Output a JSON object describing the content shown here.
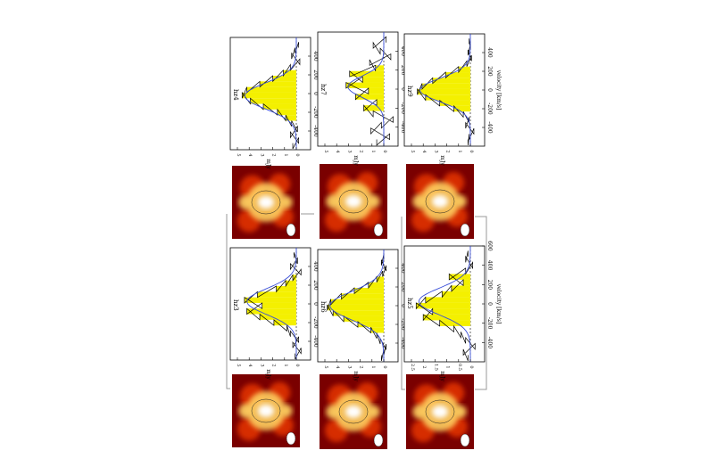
{
  "figure": {
    "orientation": "rotated-90-clockwise",
    "panels": [
      {
        "label": "hz4",
        "x_axis_label": "velocity [km/s]",
        "y_axis_label": "mJy"
      },
      {
        "label": "hz7",
        "x_axis_label": "velocity [km/s]",
        "y_axis_label": "mJy"
      },
      {
        "label": "hz9",
        "x_axis_label": "velocity [km/s]",
        "y_axis_label": "mJy"
      },
      {
        "label": "hz3",
        "x_axis_label": "velocity [km/s]",
        "y_axis_label": "mJy"
      },
      {
        "label": "hz6",
        "x_axis_label": "velocity [km/s]",
        "y_axis_label": "mJy"
      },
      {
        "label": "hz5",
        "x_axis_label": "velocity [km/s]",
        "y_axis_label": "mJy"
      }
    ]
  },
  "colors": {
    "fill": "#f4f000",
    "fit": "#3a4fd8",
    "hist": "#000000",
    "map_dark": "#7a0000",
    "map_mid": "#e03000",
    "map_light": "#ffd060",
    "map_peak": "#ffffff"
  },
  "chart_data": [
    {
      "type": "bar",
      "title": "hz4",
      "xlabel": "velocity [km/s]",
      "ylabel": "mJy",
      "xlim": [
        -600,
        600
      ],
      "x_ticks": [
        -400,
        -200,
        0,
        200,
        400
      ],
      "y_ticks": [
        0,
        1,
        2,
        3,
        4,
        5
      ],
      "velocity": [
        -560,
        -500,
        -440,
        -380,
        -320,
        -260,
        -200,
        -140,
        -80,
        -20,
        40,
        100,
        160,
        220,
        280,
        340,
        400,
        460,
        520
      ],
      "flux": [
        0.3,
        -0.2,
        0.5,
        -0.1,
        0.4,
        0.9,
        1.6,
        2.8,
        3.9,
        4.6,
        4.2,
        3.1,
        2.0,
        1.1,
        0.5,
        -0.3,
        0.4,
        0.1,
        -0.2
      ],
      "line_range": [
        -300,
        250
      ]
    },
    {
      "type": "bar",
      "title": "hz7",
      "xlabel": "velocity [km/s]",
      "ylabel": "mJy",
      "xlim": [
        -600,
        600
      ],
      "x_ticks": [
        -400,
        -200,
        0,
        200,
        400
      ],
      "y_ticks": [
        0,
        1,
        2,
        3,
        4,
        5
      ],
      "velocity": [
        -560,
        -500,
        -440,
        -380,
        -320,
        -260,
        -200,
        -140,
        -80,
        -20,
        40,
        100,
        160,
        220,
        280,
        340,
        400,
        460,
        520
      ],
      "flux": [
        0.6,
        -0.5,
        1.1,
        0.2,
        -0.8,
        0.9,
        1.7,
        0.6,
        2.4,
        1.3,
        3.2,
        1.8,
        2.9,
        0.7,
        1.2,
        -0.6,
        0.3,
        0.9,
        -0.2
      ],
      "line_range": [
        -200,
        250
      ]
    },
    {
      "type": "bar",
      "title": "hz9",
      "xlabel": "velocity [km/s]",
      "ylabel": "mJy",
      "xlim": [
        -600,
        600
      ],
      "x_ticks": [
        -400,
        -200,
        0,
        200,
        400
      ],
      "y_ticks": [
        0,
        1,
        2,
        3,
        4,
        5
      ],
      "velocity": [
        -560,
        -500,
        -440,
        -380,
        -320,
        -260,
        -200,
        -140,
        -80,
        -20,
        40,
        100,
        160,
        220,
        280,
        340,
        400,
        460,
        520
      ],
      "flux": [
        0.2,
        0.1,
        -0.3,
        0.4,
        0.1,
        0.6,
        1.4,
        2.6,
        3.8,
        4.5,
        4.1,
        3.2,
        2.1,
        1.0,
        0.3,
        -0.1,
        0.2,
        0.0,
        0.1
      ],
      "line_range": [
        -250,
        250
      ]
    },
    {
      "type": "bar",
      "title": "hz3",
      "xlabel": "velocity [km/s]",
      "ylabel": "mJy",
      "xlim": [
        -600,
        600
      ],
      "x_ticks": [
        -400,
        -200,
        0,
        200,
        400
      ],
      "y_ticks": [
        0,
        1,
        2,
        3,
        4,
        5
      ],
      "velocity": [
        -560,
        -500,
        -440,
        -380,
        -320,
        -260,
        -200,
        -140,
        -80,
        -20,
        40,
        100,
        160,
        220,
        280,
        340,
        400,
        460,
        520
      ],
      "flux": [
        0.1,
        -0.4,
        0.3,
        -0.2,
        0.5,
        0.8,
        1.9,
        3.1,
        4.2,
        2.9,
        4.4,
        3.3,
        1.7,
        0.9,
        0.3,
        -0.4,
        0.5,
        -0.1,
        0.2
      ],
      "line_range": [
        -250,
        300
      ]
    },
    {
      "type": "bar",
      "title": "hz6",
      "xlabel": "velocity [km/s]",
      "ylabel": "mJy",
      "xlim": [
        -600,
        600
      ],
      "x_ticks": [
        -400,
        -200,
        0,
        200,
        400
      ],
      "y_ticks": [
        0,
        1,
        2,
        3,
        4,
        5
      ],
      "velocity": [
        -560,
        -500,
        -440,
        -380,
        -320,
        -260,
        -200,
        -140,
        -80,
        -20,
        40,
        100,
        160,
        220,
        280,
        340,
        400,
        460,
        520
      ],
      "flux": [
        0.2,
        0.0,
        -0.2,
        0.3,
        0.6,
        1.1,
        2.2,
        3.4,
        4.3,
        4.8,
        4.5,
        3.6,
        2.5,
        1.3,
        0.6,
        0.1,
        -0.2,
        0.2,
        0.0
      ],
      "line_range": [
        -300,
        300
      ]
    },
    {
      "type": "bar",
      "title": "hz5",
      "xlabel": "velocity [km/s]",
      "ylabel": "mJy",
      "xlim": [
        -600,
        600
      ],
      "x_ticks": [
        -400,
        -200,
        0,
        200,
        400,
        600
      ],
      "y_ticks": [
        0,
        0.5,
        1,
        1.5,
        2,
        2.5
      ],
      "velocity": [
        -560,
        -500,
        -440,
        -380,
        -320,
        -260,
        -200,
        -140,
        -80,
        -20,
        40,
        100,
        160,
        220,
        280,
        340,
        400,
        460,
        520
      ],
      "flux": [
        0.1,
        0.3,
        -0.2,
        0.2,
        0.4,
        0.7,
        1.3,
        2.0,
        1.6,
        2.3,
        1.9,
        1.2,
        0.8,
        0.3,
        0.9,
        0.2,
        -0.1,
        0.2,
        0.1
      ],
      "line_range": [
        -250,
        300
      ]
    }
  ]
}
